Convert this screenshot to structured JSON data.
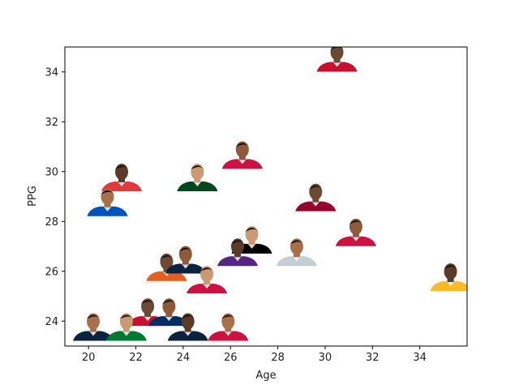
{
  "chart_data": {
    "type": "scatter",
    "title": "",
    "xlabel": "Age",
    "ylabel": "PPG",
    "xlim": [
      19.0,
      36.0
    ],
    "ylim": [
      23.0,
      35.0
    ],
    "xticks": [
      20,
      22,
      24,
      26,
      28,
      30,
      32,
      34
    ],
    "yticks": [
      24,
      26,
      28,
      30,
      32,
      34
    ],
    "grid": false,
    "legend": "none",
    "marker": "player-headshot-icon",
    "points": [
      {
        "x": 30.5,
        "y": 34.4,
        "jersey": "#c8102e"
      },
      {
        "x": 26.5,
        "y": 30.5,
        "jersey": "#ce1141"
      },
      {
        "x": 24.6,
        "y": 29.6,
        "jersey": "#00471b"
      },
      {
        "x": 21.4,
        "y": 29.6,
        "jersey": "#e03a3e"
      },
      {
        "x": 20.8,
        "y": 28.6,
        "jersey": "#0053bc"
      },
      {
        "x": 29.6,
        "y": 28.8,
        "jersey": "#98002e"
      },
      {
        "x": 31.3,
        "y": 27.4,
        "jersey": "#ce1141"
      },
      {
        "x": 26.9,
        "y": 27.1,
        "jersey": "#000000"
      },
      {
        "x": 26.3,
        "y": 26.6,
        "jersey": "#552583"
      },
      {
        "x": 28.8,
        "y": 26.6,
        "jersey": "#c4ced4"
      },
      {
        "x": 23.3,
        "y": 26.0,
        "jersey": "#e56020"
      },
      {
        "x": 24.1,
        "y": 26.3,
        "jersey": "#0c2340"
      },
      {
        "x": 25.0,
        "y": 25.5,
        "jersey": "#ce1141"
      },
      {
        "x": 35.3,
        "y": 25.6,
        "jersey": "#fdb927"
      },
      {
        "x": 20.2,
        "y": 23.6,
        "jersey": "#0c2340"
      },
      {
        "x": 22.5,
        "y": 24.2,
        "jersey": "#c8102e"
      },
      {
        "x": 23.4,
        "y": 24.2,
        "jersey": "#002d62"
      },
      {
        "x": 21.6,
        "y": 23.6,
        "jersey": "#007a33"
      },
      {
        "x": 24.2,
        "y": 23.6,
        "jersey": "#0c2340"
      },
      {
        "x": 25.9,
        "y": 23.6,
        "jersey": "#ce1141"
      }
    ]
  }
}
